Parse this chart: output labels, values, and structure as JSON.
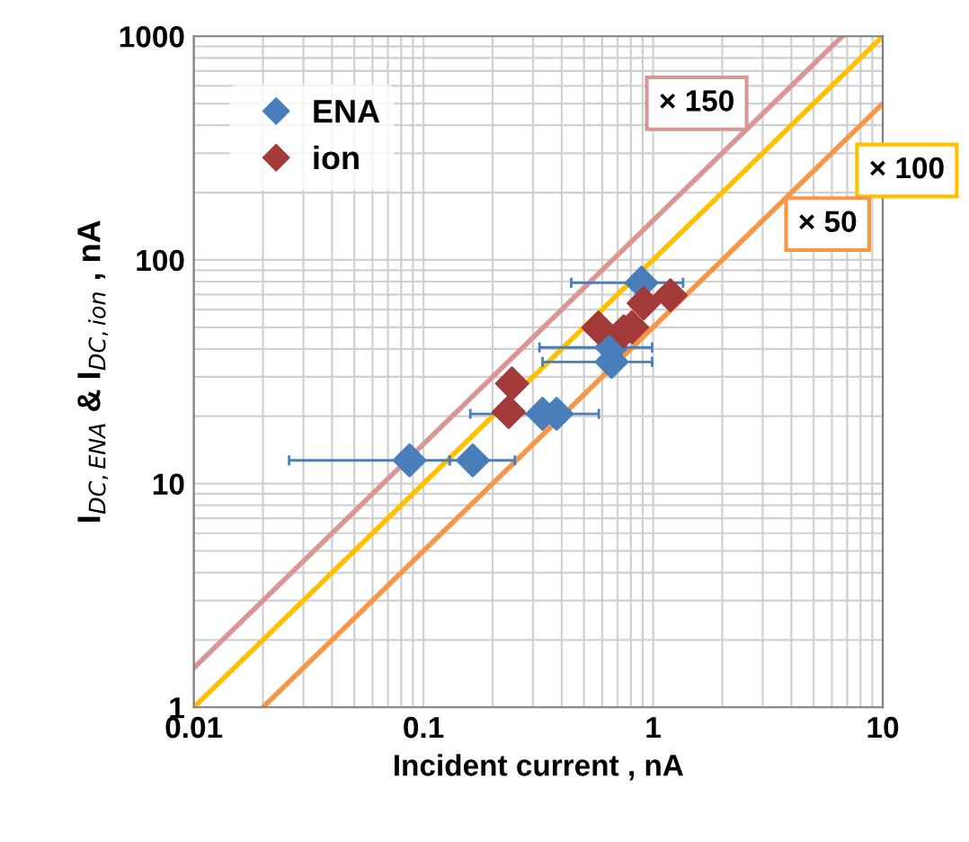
{
  "chart_data": {
    "type": "scatter",
    "xlabel": "Incident current , nA",
    "ylabel": "I$_{DC,ENA}$ & I$_{DC,ion}$ , nA",
    "log": "xy",
    "xlim": [
      0.01,
      10
    ],
    "ylim": [
      1,
      1000
    ],
    "xticks": [
      0.01,
      0.1,
      1,
      10
    ],
    "yticks": [
      1,
      10,
      100,
      1000
    ],
    "grid": true,
    "legend": "top left",
    "marker": "diamond",
    "series": [
      {
        "name": "ENA",
        "color": "#4a7ebb",
        "x": [
          0.087,
          0.164,
          0.33,
          0.38,
          0.66,
          0.66,
          0.89
        ],
        "values": [
          12.7,
          12.7,
          20.5,
          20.5,
          40.6,
          35,
          79
        ],
        "xerrors": [
          [
            0.026,
            0.13
          ],
          [
            0.13,
            0.25
          ],
          [
            0.16,
            0.58
          ],
          null,
          [
            0.32,
            0.99
          ],
          [
            0.33,
            0.99
          ],
          [
            0.44,
            1.35
          ]
        ]
      },
      {
        "name": "ion",
        "color": "#a33a3a",
        "x": [
          0.243,
          0.235,
          0.578,
          0.745,
          0.81,
          0.91,
          1.19
        ],
        "values": [
          28,
          20.9,
          49.8,
          48,
          50,
          64,
          69.5
        ]
      },
      {
        "name": "× 150",
        "type": "line",
        "marker": "none",
        "color": "#d99694",
        "x": [
          0.01,
          6.667
        ],
        "values": [
          1.5,
          1000
        ]
      },
      {
        "name": "× 100",
        "type": "line",
        "marker": "none",
        "color": "#ffc000",
        "x": [
          0.01,
          10
        ],
        "values": [
          1,
          1000
        ]
      },
      {
        "name": "× 50",
        "type": "line",
        "marker": "none",
        "color": "#f79646",
        "x": [
          0.02,
          10
        ],
        "values": [
          1,
          500
        ]
      }
    ]
  }
}
